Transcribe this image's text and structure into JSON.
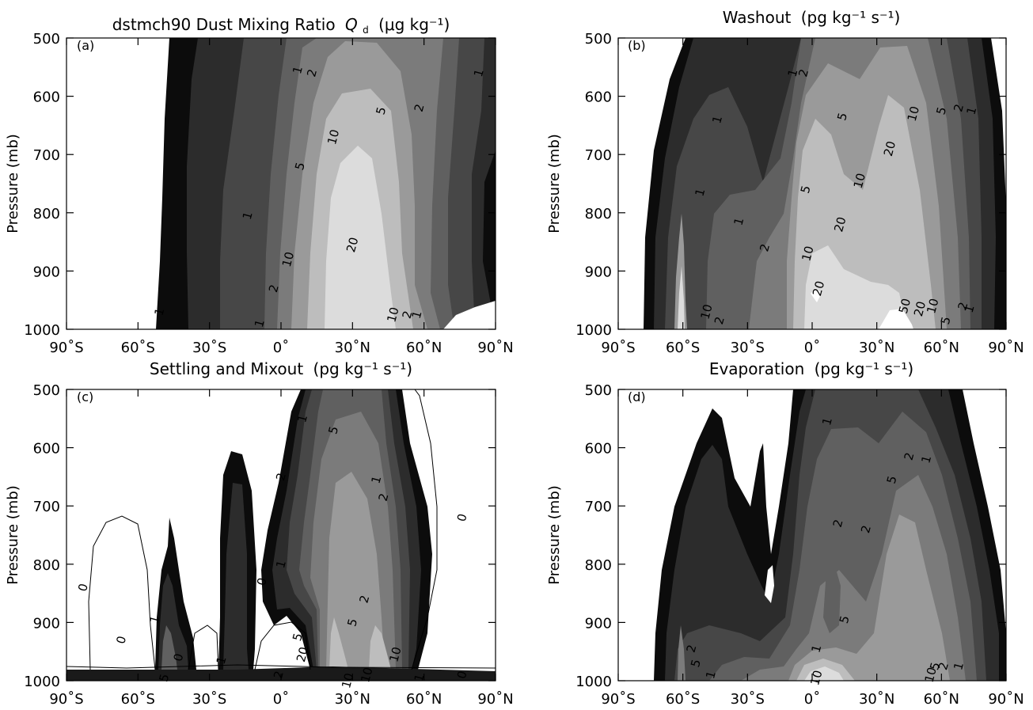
{
  "chart_data": [
    {
      "type": "contour",
      "panel_label": "(a)",
      "title": "dstmch90 Dust Mixing Ratio",
      "title_symbol": "Q",
      "title_symbol_sub": "d",
      "title_units": "(μg kg⁻¹)",
      "ylabel": "Pressure (mb)",
      "xticks": [
        "90˚S",
        "60˚S",
        "30˚S",
        "0˚",
        "30˚N",
        "60˚N",
        "90˚N"
      ],
      "yticks": [
        "500",
        "600",
        "700",
        "800",
        "900",
        "1000"
      ],
      "xlim": [
        -90,
        90
      ],
      "ylim": [
        1000,
        500
      ],
      "contour_levels": [
        1,
        2,
        5,
        10,
        20
      ],
      "contour_labels": [
        {
          "text": "1",
          "lat": 7,
          "p": 555
        },
        {
          "text": "2",
          "lat": 13,
          "p": 560
        },
        {
          "text": "1",
          "lat": 83,
          "p": 560
        },
        {
          "text": "2",
          "lat": 58,
          "p": 620
        },
        {
          "text": "5",
          "lat": 42,
          "p": 625
        },
        {
          "text": "10",
          "lat": 22,
          "p": 670
        },
        {
          "text": "5",
          "lat": 8,
          "p": 720
        },
        {
          "text": "1",
          "lat": -14,
          "p": 805
        },
        {
          "text": "10",
          "lat": 3,
          "p": 880
        },
        {
          "text": "20",
          "lat": 30,
          "p": 855
        },
        {
          "text": "2",
          "lat": -3,
          "p": 930
        },
        {
          "text": "1",
          "lat": -51,
          "p": 970
        },
        {
          "text": "1",
          "lat": -9,
          "p": 990
        },
        {
          "text": "10",
          "lat": 47,
          "p": 975
        },
        {
          "text": "2",
          "lat": 53,
          "p": 975
        },
        {
          "text": "1",
          "lat": 57,
          "p": 975
        }
      ]
    },
    {
      "type": "contour",
      "panel_label": "(b)",
      "title": "Washout",
      "title_units": "(pg kg⁻¹ s⁻¹)",
      "ylabel": "Pressure (mb)",
      "xticks": [
        "90˚S",
        "60˚S",
        "30˚S",
        "0˚",
        "30˚N",
        "60˚N",
        "90˚N"
      ],
      "yticks": [
        "500",
        "600",
        "700",
        "800",
        "900",
        "1000"
      ],
      "xlim": [
        -90,
        90
      ],
      "ylim": [
        1000,
        500
      ],
      "contour_levels": [
        1,
        2,
        5,
        10,
        20,
        50
      ],
      "contour_labels": [
        {
          "text": "1",
          "lat": -9,
          "p": 560
        },
        {
          "text": "2",
          "lat": -4,
          "p": 560
        },
        {
          "text": "1",
          "lat": -44,
          "p": 640
        },
        {
          "text": "5",
          "lat": 14,
          "p": 635
        },
        {
          "text": "10",
          "lat": 47,
          "p": 630
        },
        {
          "text": "5",
          "lat": 60,
          "p": 625
        },
        {
          "text": "2",
          "lat": 68,
          "p": 620
        },
        {
          "text": "1",
          "lat": 74,
          "p": 625
        },
        {
          "text": "20",
          "lat": 36,
          "p": 690
        },
        {
          "text": "1",
          "lat": -52,
          "p": 765
        },
        {
          "text": "5",
          "lat": -3,
          "p": 760
        },
        {
          "text": "10",
          "lat": 22,
          "p": 745
        },
        {
          "text": "1",
          "lat": -34,
          "p": 815
        },
        {
          "text": "20",
          "lat": 13,
          "p": 820
        },
        {
          "text": "2",
          "lat": -22,
          "p": 860
        },
        {
          "text": "10",
          "lat": -2,
          "p": 870
        },
        {
          "text": "20",
          "lat": 3,
          "p": 930
        },
        {
          "text": "50",
          "lat": 43,
          "p": 960
        },
        {
          "text": "20",
          "lat": 50,
          "p": 965
        },
        {
          "text": "10",
          "lat": 56,
          "p": 960
        },
        {
          "text": "5",
          "lat": 62,
          "p": 985
        },
        {
          "text": "2",
          "lat": 70,
          "p": 960
        },
        {
          "text": "1",
          "lat": 73,
          "p": 965
        },
        {
          "text": "2",
          "lat": -43,
          "p": 985
        },
        {
          "text": "10",
          "lat": -49,
          "p": 970
        }
      ]
    },
    {
      "type": "contour",
      "panel_label": "(c)",
      "title": "Settling and Mixout",
      "title_units": "(pg kg⁻¹ s⁻¹)",
      "ylabel": "Pressure (mb)",
      "xticks": [
        "90˚S",
        "60˚S",
        "30˚S",
        "0˚",
        "30˚N",
        "60˚N",
        "90˚N"
      ],
      "yticks": [
        "500",
        "600",
        "700",
        "800",
        "900",
        "1000"
      ],
      "xlim": [
        -90,
        90
      ],
      "ylim": [
        1000,
        500
      ],
      "contour_levels": [
        0,
        1,
        2,
        5,
        10,
        20
      ],
      "contour_labels": [
        {
          "text": "1",
          "lat": 9,
          "p": 550
        },
        {
          "text": "5",
          "lat": 22,
          "p": 570
        },
        {
          "text": "2",
          "lat": 0,
          "p": 650
        },
        {
          "text": "1",
          "lat": 40,
          "p": 655
        },
        {
          "text": "2",
          "lat": 43,
          "p": 685
        },
        {
          "text": "0",
          "lat": 76,
          "p": 720
        },
        {
          "text": "0",
          "lat": -83,
          "p": 840
        },
        {
          "text": "0",
          "lat": -8,
          "p": 830
        },
        {
          "text": "1",
          "lat": 0,
          "p": 800
        },
        {
          "text": "5",
          "lat": 30,
          "p": 900
        },
        {
          "text": "2",
          "lat": 35,
          "p": 860
        },
        {
          "text": "1",
          "lat": -53,
          "p": 895
        },
        {
          "text": "0",
          "lat": -67,
          "p": 930
        },
        {
          "text": "0",
          "lat": -43,
          "p": 960
        },
        {
          "text": "5",
          "lat": 7,
          "p": 925
        },
        {
          "text": "20",
          "lat": 9,
          "p": 955
        },
        {
          "text": "10",
          "lat": 48,
          "p": 955
        },
        {
          "text": "1",
          "lat": -25,
          "p": 965
        },
        {
          "text": "5",
          "lat": -49,
          "p": 995
        },
        {
          "text": "2",
          "lat": -1,
          "p": 990
        },
        {
          "text": "10",
          "lat": 28,
          "p": 1000
        },
        {
          "text": "10",
          "lat": 36,
          "p": 990
        },
        {
          "text": "1",
          "lat": 58,
          "p": 995
        },
        {
          "text": "0",
          "lat": 76,
          "p": 990
        }
      ]
    },
    {
      "type": "contour",
      "panel_label": "(d)",
      "title": "Evaporation",
      "title_units": "(pg kg⁻¹ s⁻¹)",
      "ylabel": "Pressure (mb)",
      "xticks": [
        "90˚S",
        "60˚S",
        "30˚S",
        "0˚",
        "30˚N",
        "60˚N",
        "90˚N"
      ],
      "yticks": [
        "500",
        "600",
        "700",
        "800",
        "900",
        "1000"
      ],
      "xlim": [
        -90,
        90
      ],
      "ylim": [
        1000,
        500
      ],
      "contour_levels": [
        1,
        2,
        5,
        10
      ],
      "contour_labels": [
        {
          "text": "1",
          "lat": 7,
          "p": 555
        },
        {
          "text": "1",
          "lat": 53,
          "p": 620
        },
        {
          "text": "2",
          "lat": 45,
          "p": 615
        },
        {
          "text": "5",
          "lat": 37,
          "p": 655
        },
        {
          "text": "2",
          "lat": 12,
          "p": 730
        },
        {
          "text": "2",
          "lat": 25,
          "p": 740
        },
        {
          "text": "5",
          "lat": 15,
          "p": 895
        },
        {
          "text": "1",
          "lat": 2,
          "p": 945
        },
        {
          "text": "5",
          "lat": 57,
          "p": 975
        },
        {
          "text": "2",
          "lat": 61,
          "p": 975
        },
        {
          "text": "1",
          "lat": 68,
          "p": 975
        },
        {
          "text": "10",
          "lat": 55,
          "p": 990
        },
        {
          "text": "10",
          "lat": 2,
          "p": 995
        },
        {
          "text": "2",
          "lat": -56,
          "p": 945
        },
        {
          "text": "5",
          "lat": -54,
          "p": 970
        },
        {
          "text": "1",
          "lat": -47,
          "p": 990
        }
      ]
    }
  ]
}
